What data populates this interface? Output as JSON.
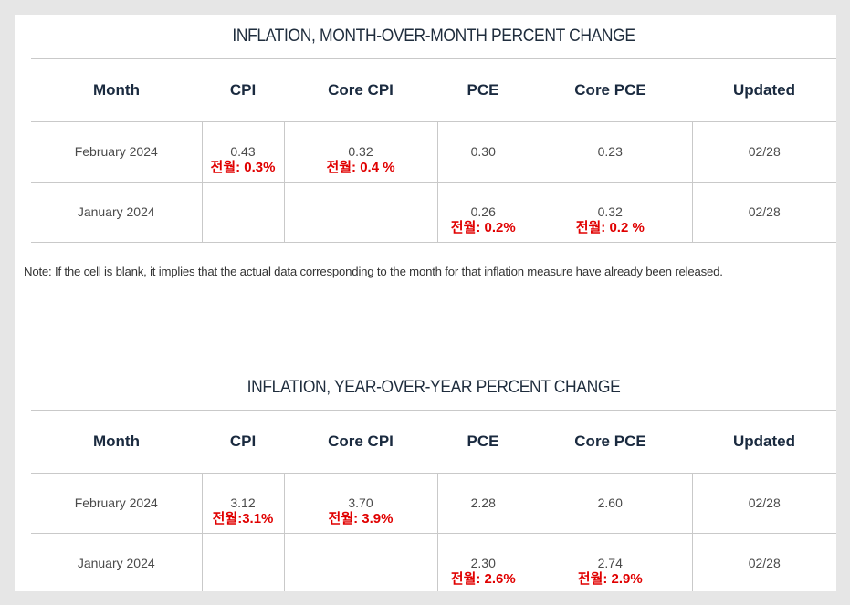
{
  "mom": {
    "title": "INFLATION, MONTH-OVER-MONTH PERCENT CHANGE",
    "headers": [
      "Month",
      "CPI",
      "Core CPI",
      "PCE",
      "Core PCE",
      "Updated"
    ],
    "rows": [
      {
        "month": "February 2024",
        "cpi": "0.43",
        "cpi_note": "전월: 0.3%",
        "core_cpi": "0.32",
        "core_cpi_note": "전월: 0.4 %",
        "pce": "0.30",
        "pce_note": "",
        "core_pce": "0.23",
        "core_pce_note": "",
        "updated": "02/28"
      },
      {
        "month": "January 2024",
        "cpi": "",
        "cpi_note": "",
        "core_cpi": "",
        "core_cpi_note": "",
        "pce": "0.26",
        "pce_note": "전월: 0.2%",
        "core_pce": "0.32",
        "core_pce_note": "전월: 0.2 %",
        "updated": "02/28"
      }
    ]
  },
  "footnote": "Note: If the cell is blank, it implies that the actual data corresponding to the month for that inflation measure have already been released.",
  "yoy": {
    "title": "INFLATION, YEAR-OVER-YEAR PERCENT CHANGE",
    "headers": [
      "Month",
      "CPI",
      "Core CPI",
      "PCE",
      "Core PCE",
      "Updated"
    ],
    "rows": [
      {
        "month": "February 2024",
        "cpi": "3.12",
        "cpi_note": "전월:3.1%",
        "core_cpi": "3.70",
        "core_cpi_note": "전월: 3.9%",
        "pce": "2.28",
        "pce_note": "",
        "core_pce": "2.60",
        "core_pce_note": "",
        "updated": "02/28"
      },
      {
        "month": "January 2024",
        "cpi": "",
        "cpi_note": "",
        "core_cpi": "",
        "core_cpi_note": "",
        "pce": "2.30",
        "pce_note": "전월: 2.6%",
        "core_pce": "2.74",
        "core_pce_note": "전월: 2.9%",
        "updated": "02/28"
      }
    ]
  },
  "colors": {
    "note_red": "#e00000",
    "header_navy": "#1a2a3f",
    "border": "#c9c9c9"
  }
}
